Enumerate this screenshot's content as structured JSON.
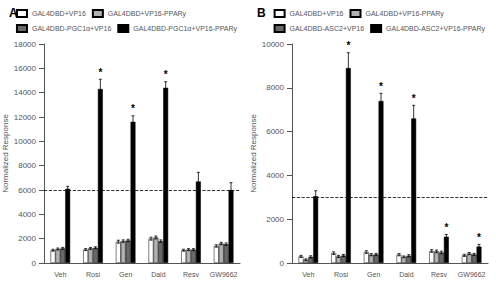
{
  "chart_data": [
    {
      "type": "bar",
      "title": "A",
      "ylabel": "Normalized Response",
      "categories": [
        "Veh",
        "Rosi",
        "Gen",
        "Daid",
        "Resv",
        "GW9662"
      ],
      "series": [
        {
          "name": "GAL4DBD+VP16",
          "color": "white",
          "values": [
            1050,
            1100,
            1750,
            2000,
            1050,
            1400
          ],
          "errors": [
            80,
            80,
            120,
            120,
            80,
            100
          ]
        },
        {
          "name": "GAL4DBD+VP16-PPARy",
          "color": "#b0b0b0",
          "values": [
            1150,
            1200,
            1800,
            2100,
            1100,
            1600
          ],
          "errors": [
            80,
            80,
            100,
            120,
            80,
            100
          ]
        },
        {
          "name": "GAL4DBD-PGC1α+VP16",
          "color": "#686868",
          "values": [
            1200,
            1250,
            1850,
            1800,
            1100,
            1550
          ],
          "errors": [
            80,
            80,
            100,
            100,
            80,
            100
          ]
        },
        {
          "name": "GAL4DBD-PGC1α+VP16-PPARy",
          "color": "black",
          "values": [
            6100,
            14300,
            11600,
            14400,
            6700,
            6000
          ],
          "errors": [
            200,
            800,
            500,
            500,
            750,
            600
          ]
        }
      ],
      "ylim": [
        0,
        18000
      ],
      "yticks": [
        0,
        2000,
        4000,
        6000,
        8000,
        10000,
        12000,
        14000,
        16000,
        18000
      ],
      "reference_line": {
        "y": 6000,
        "line_style": "dashed"
      },
      "annotations": [
        {
          "text": "*",
          "series": "GAL4DBD-PGC1α+VP16-PPARy",
          "category": "Rosi"
        },
        {
          "text": "*",
          "series": "GAL4DBD-PGC1α+VP16-PPARy",
          "category": "Gen"
        },
        {
          "text": "*",
          "series": "GAL4DBD-PGC1α+VP16-PPARy",
          "category": "Daid"
        }
      ],
      "grid": false,
      "legend": "upper right"
    },
    {
      "type": "bar",
      "title": "B",
      "ylabel": "Normalized Response",
      "categories": [
        "Veh",
        "Rosi",
        "Gen",
        "Daid",
        "Resv",
        "GW9662"
      ],
      "series": [
        {
          "name": "GAL4DBD+VP16",
          "color": "white",
          "values": [
            300,
            450,
            500,
            380,
            550,
            350
          ],
          "errors": [
            50,
            60,
            60,
            50,
            60,
            50
          ]
        },
        {
          "name": "GAL4DBD+VP16-PPARy",
          "color": "#b0b0b0",
          "values": [
            150,
            300,
            380,
            280,
            530,
            430
          ],
          "errors": [
            40,
            50,
            50,
            40,
            60,
            50
          ]
        },
        {
          "name": "GAL4DBD-ASC2+VP16",
          "color": "#686868",
          "values": [
            280,
            340,
            390,
            330,
            480,
            390
          ],
          "errors": [
            50,
            50,
            50,
            50,
            60,
            50
          ]
        },
        {
          "name": "GAL4DBD-ASC2+VP16-PPARy",
          "color": "black",
          "values": [
            3050,
            8900,
            7400,
            6600,
            1200,
            750
          ],
          "errors": [
            250,
            700,
            350,
            600,
            100,
            100
          ]
        }
      ],
      "ylim": [
        0,
        10000
      ],
      "yticks": [
        0,
        2000,
        4000,
        6000,
        8000,
        10000
      ],
      "reference_line": {
        "y": 3000,
        "line_style": "dashed"
      },
      "annotations": [
        {
          "text": "*",
          "series": "GAL4DBD-ASC2+VP16-PPARy",
          "category": "Rosi"
        },
        {
          "text": "*",
          "series": "GAL4DBD-ASC2+VP16-PPARy",
          "category": "Gen"
        },
        {
          "text": "*",
          "series": "GAL4DBD-ASC2+VP16-PPARy",
          "category": "Daid"
        },
        {
          "text": "*",
          "series": "GAL4DBD-ASC2+VP16-PPARy",
          "category": "Resv"
        },
        {
          "text": "*",
          "series": "GAL4DBD-ASC2+VP16-PPARy",
          "category": "GW9662"
        }
      ],
      "grid": false,
      "legend": "upper right"
    }
  ]
}
